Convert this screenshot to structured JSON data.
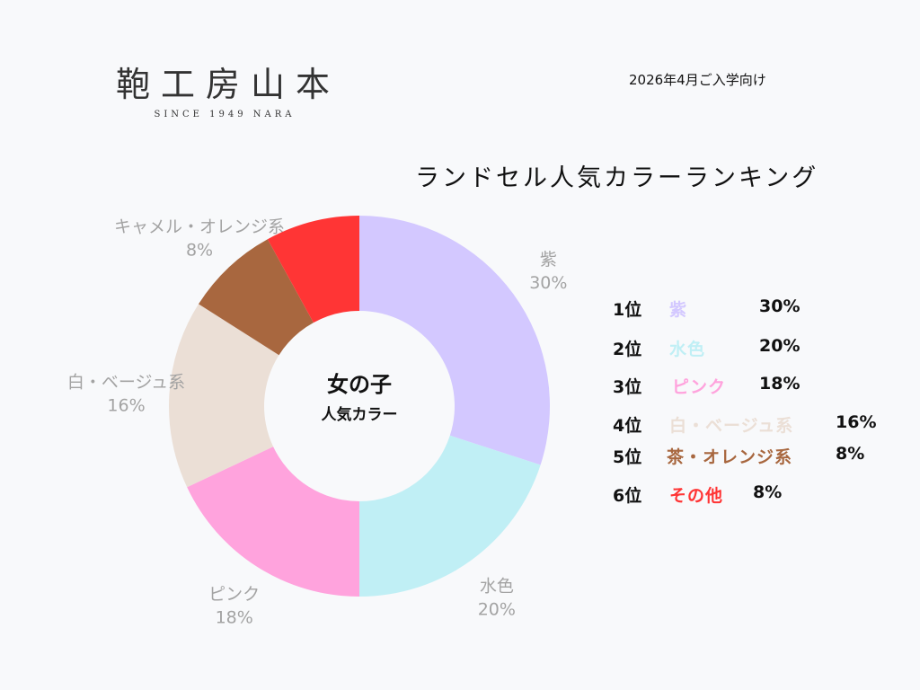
{
  "header": {
    "brand_name": "鞄工房山本",
    "brand_tagline": "SINCE 1949 NARA",
    "date_note": "2026年4月ご入学向け"
  },
  "chart_data": {
    "type": "pie",
    "title": "ランドセル人気カラーランキング",
    "center_main": "女の子",
    "center_sub": "人気カラー",
    "slices": [
      {
        "label": "紫",
        "value": 30,
        "value_label": "30%",
        "color": "#d3c8ff"
      },
      {
        "label": "水色",
        "value": 20,
        "value_label": "20%",
        "color": "#c0eff5"
      },
      {
        "label": "ピンク",
        "value": 18,
        "value_label": "18%",
        "color": "#ffa3dd"
      },
      {
        "label": "白・ベージュ系",
        "value": 16,
        "value_label": "16%",
        "color": "#ebdfd6"
      },
      {
        "label": "キャメル・オレンジ系",
        "value": 8,
        "value_label": "8%",
        "color": "#a8673f"
      },
      {
        "label": "",
        "value": 8,
        "value_label": "",
        "color": "#ff3535"
      }
    ],
    "label_color": "#a3a3a3"
  },
  "legend": [
    {
      "rank": "1位",
      "name": "紫",
      "pct": "30%",
      "color": "#d3c8ff"
    },
    {
      "rank": "2位",
      "name": "水色",
      "pct": "20%",
      "color": "#c0eff5"
    },
    {
      "rank": "3位",
      "name": "ピンク",
      "pct": "18%",
      "color": "#ffa3dd"
    },
    {
      "rank": "4位",
      "name": "白・ベージュ系",
      "pct": "16%",
      "color": "#ebdfd6"
    },
    {
      "rank": "5位",
      "name": "茶・オレンジ系",
      "pct": "8%",
      "color": "#a8673f"
    },
    {
      "rank": "6位",
      "name": "その他",
      "pct": "8%",
      "color": "#ff3535"
    }
  ]
}
